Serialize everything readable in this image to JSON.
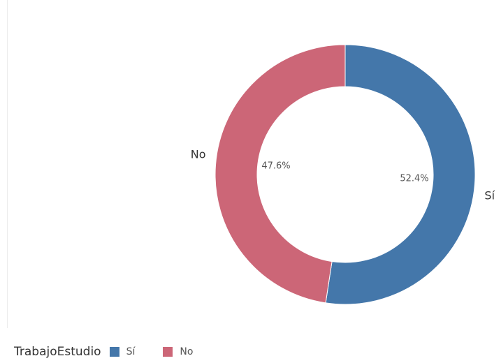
{
  "chart_data": {
    "type": "pie",
    "donut": true,
    "slices": [
      {
        "label": "Sí",
        "value": 52.4,
        "value_label": "52.4%",
        "color": "#4477aa"
      },
      {
        "label": "No",
        "value": 47.6,
        "value_label": "47.6%",
        "color": "#cc6677"
      }
    ],
    "legend": {
      "title": "TrabajoEstudio",
      "placement": "bottom-left",
      "items": [
        {
          "label": "Sí",
          "color": "#4477aa"
        },
        {
          "label": "No",
          "color": "#cc6677"
        }
      ]
    }
  }
}
